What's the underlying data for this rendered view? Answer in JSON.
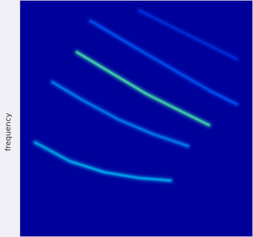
{
  "chart_data": {
    "type": "spectrogram",
    "y_label": "frequency",
    "tick_labels": false,
    "color": "#00009a",
    "xlim": [
      0,
      1
    ],
    "ylim": [
      0,
      1
    ],
    "series": [
      {
        "color": "#00c8ff",
        "x": [
          0.066,
          0.215,
          0.364,
          0.513,
          0.648
        ],
        "values": [
          0.399,
          0.32,
          0.273,
          0.249,
          0.238
        ]
      },
      {
        "color": "#0096ff",
        "x": [
          0.14,
          0.275,
          0.424,
          0.573,
          0.722
        ],
        "values": [
          0.654,
          0.575,
          0.496,
          0.434,
          0.384
        ]
      },
      {
        "color": "#50ffb0",
        "x": [
          0.245,
          0.394,
          0.543,
          0.663,
          0.812
        ],
        "values": [
          0.78,
          0.692,
          0.604,
          0.545,
          0.472
        ]
      },
      {
        "color": "#0060ff",
        "x": [
          0.304,
          0.454,
          0.633,
          0.812,
          0.931
        ],
        "values": [
          0.912,
          0.824,
          0.721,
          0.619,
          0.56
        ]
      },
      {
        "color": "#0032e6",
        "x": [
          0.513,
          0.722,
          0.931
        ],
        "values": [
          0.956,
          0.853,
          0.751
        ]
      }
    ]
  }
}
